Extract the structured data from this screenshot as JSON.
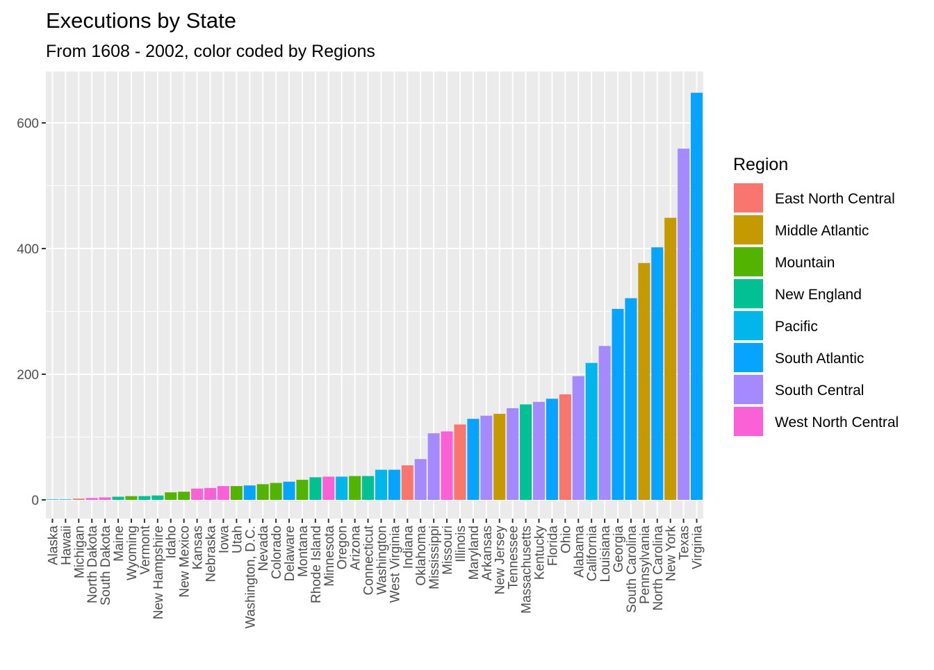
{
  "chart_data": {
    "type": "bar",
    "title": "Executions by State",
    "subtitle": "From 1608 - 2002, color coded by Regions",
    "xlabel": "",
    "ylabel": "",
    "ylim": [
      0,
      680
    ],
    "yticks": [
      0,
      200,
      400,
      600
    ],
    "grid": true,
    "legend": {
      "title": "Region",
      "position": "right"
    },
    "regions": [
      {
        "name": "East North Central",
        "color": "#F8766D"
      },
      {
        "name": "Middle Atlantic",
        "color": "#C49A00"
      },
      {
        "name": "Mountain",
        "color": "#53B400"
      },
      {
        "name": "New England",
        "color": "#00C094"
      },
      {
        "name": "Pacific",
        "color": "#00B6EB"
      },
      {
        "name": "South Atlantic",
        "color": "#06A4FF"
      },
      {
        "name": "South Central",
        "color": "#A58AFF"
      },
      {
        "name": "West North Central",
        "color": "#FB61D7"
      }
    ],
    "bars": [
      {
        "state": "Alaska",
        "value": 0,
        "region": "Pacific"
      },
      {
        "state": "Hawaii",
        "value": 0,
        "region": "Pacific"
      },
      {
        "state": "Michigan",
        "value": 2,
        "region": "East North Central"
      },
      {
        "state": "North Dakota",
        "value": 3,
        "region": "West North Central"
      },
      {
        "state": "South Dakota",
        "value": 4,
        "region": "West North Central"
      },
      {
        "state": "Maine",
        "value": 5,
        "region": "New England"
      },
      {
        "state": "Wyoming",
        "value": 6,
        "region": "Mountain"
      },
      {
        "state": "Vermont",
        "value": 6,
        "region": "New England"
      },
      {
        "state": "New Hampshire",
        "value": 7,
        "region": "New England"
      },
      {
        "state": "Idaho",
        "value": 12,
        "region": "Mountain"
      },
      {
        "state": "New Mexico",
        "value": 13,
        "region": "Mountain"
      },
      {
        "state": "Kansas",
        "value": 18,
        "region": "West North Central"
      },
      {
        "state": "Nebraska",
        "value": 19,
        "region": "West North Central"
      },
      {
        "state": "Iowa",
        "value": 22,
        "region": "West North Central"
      },
      {
        "state": "Utah",
        "value": 22,
        "region": "Mountain"
      },
      {
        "state": "Washington, D.C.",
        "value": 23,
        "region": "South Atlantic"
      },
      {
        "state": "Nevada",
        "value": 25,
        "region": "Mountain"
      },
      {
        "state": "Colorado",
        "value": 27,
        "region": "Mountain"
      },
      {
        "state": "Delaware",
        "value": 29,
        "region": "South Atlantic"
      },
      {
        "state": "Montana",
        "value": 32,
        "region": "Mountain"
      },
      {
        "state": "Rhode Island",
        "value": 36,
        "region": "New England"
      },
      {
        "state": "Minnesota",
        "value": 37,
        "region": "West North Central"
      },
      {
        "state": "Oregon",
        "value": 37,
        "region": "Pacific"
      },
      {
        "state": "Arizona",
        "value": 38,
        "region": "Mountain"
      },
      {
        "state": "Connecticut",
        "value": 38,
        "region": "New England"
      },
      {
        "state": "Washington",
        "value": 48,
        "region": "Pacific"
      },
      {
        "state": "West Virginia",
        "value": 48,
        "region": "South Atlantic"
      },
      {
        "state": "Indiana",
        "value": 55,
        "region": "East North Central"
      },
      {
        "state": "Oklahoma",
        "value": 65,
        "region": "South Central"
      },
      {
        "state": "Mississippi",
        "value": 106,
        "region": "South Central"
      },
      {
        "state": "Missouri",
        "value": 109,
        "region": "West North Central"
      },
      {
        "state": "Illinois",
        "value": 120,
        "region": "East North Central"
      },
      {
        "state": "Maryland",
        "value": 129,
        "region": "South Atlantic"
      },
      {
        "state": "Arkansas",
        "value": 134,
        "region": "South Central"
      },
      {
        "state": "New Jersey",
        "value": 137,
        "region": "Middle Atlantic"
      },
      {
        "state": "Tennessee",
        "value": 146,
        "region": "South Central"
      },
      {
        "state": "Massachusetts",
        "value": 152,
        "region": "New England"
      },
      {
        "state": "Kentucky",
        "value": 156,
        "region": "South Central"
      },
      {
        "state": "Florida",
        "value": 161,
        "region": "South Atlantic"
      },
      {
        "state": "Ohio",
        "value": 168,
        "region": "East North Central"
      },
      {
        "state": "Alabama",
        "value": 197,
        "region": "South Central"
      },
      {
        "state": "California",
        "value": 218,
        "region": "Pacific"
      },
      {
        "state": "Louisiana",
        "value": 245,
        "region": "South Central"
      },
      {
        "state": "Georgia",
        "value": 304,
        "region": "South Atlantic"
      },
      {
        "state": "South Carolina",
        "value": 321,
        "region": "South Atlantic"
      },
      {
        "state": "Pennsylvania",
        "value": 377,
        "region": "Middle Atlantic"
      },
      {
        "state": "North Carolina",
        "value": 402,
        "region": "South Atlantic"
      },
      {
        "state": "New York",
        "value": 449,
        "region": "Middle Atlantic"
      },
      {
        "state": "Texas",
        "value": 559,
        "region": "South Central"
      },
      {
        "state": "Virginia",
        "value": 648,
        "region": "South Atlantic"
      }
    ]
  }
}
